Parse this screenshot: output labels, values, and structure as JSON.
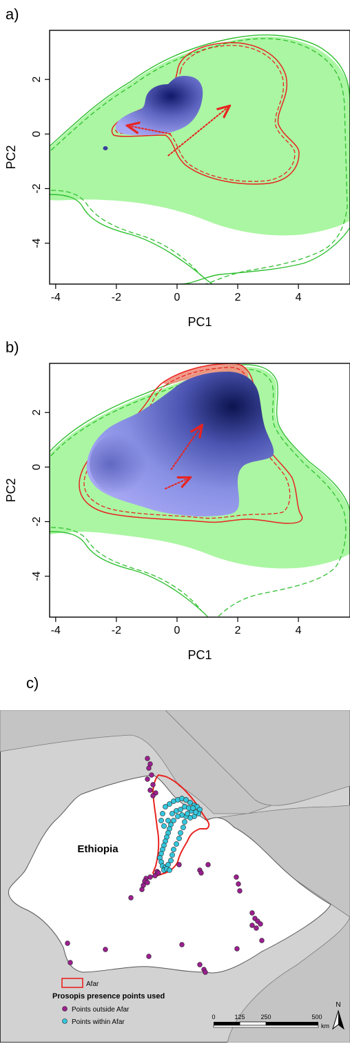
{
  "panels": {
    "a": {
      "label": "a)"
    },
    "b": {
      "label": "b)"
    },
    "c": {
      "label": "c)"
    }
  },
  "colors": {
    "green_fill": "#aaf6a2",
    "green_line": "#2fbf2f",
    "red": "#e8231f",
    "blue_dark": "#101860",
    "blue_light": "#a8a8f4",
    "ocean": "#d2d2d2",
    "land": "#ffffff",
    "magenta": "#9b1f8f",
    "cyan": "#34c6dc"
  },
  "chart_data": [
    {
      "type": "scatter",
      "title": "",
      "xlabel": "PC1",
      "ylabel": "PC2",
      "xlim": [
        -4.2,
        5.7
      ],
      "ylim": [
        -5.5,
        3.8
      ],
      "xticks": [
        "-4",
        "-2",
        "0",
        "2",
        "4"
      ],
      "yticks": [
        "2",
        "0",
        "-2",
        "-4"
      ],
      "arrows": [
        {
          "from": [
            -0.3,
            -0.8
          ],
          "to": [
            1.7,
            1.0
          ]
        },
        {
          "from": [
            -0.2,
            0.0
          ],
          "to": [
            -1.6,
            0.3
          ]
        }
      ],
      "grid": false
    },
    {
      "type": "scatter",
      "title": "",
      "xlabel": "PC1",
      "ylabel": "PC2",
      "xlim": [
        -4.2,
        5.7
      ],
      "ylim": [
        -5.5,
        3.8
      ],
      "xticks": [
        "-4",
        "-2",
        "0",
        "2",
        "4"
      ],
      "yticks": [
        "2",
        "0",
        "-2",
        "-4"
      ],
      "arrows": [
        {
          "from": [
            -0.2,
            -0.1
          ],
          "to": [
            0.8,
            1.5
          ]
        },
        {
          "from": [
            -0.4,
            -0.8
          ],
          "to": [
            0.4,
            -0.4
          ]
        }
      ],
      "grid": false
    }
  ],
  "map": {
    "country_label": "Ethiopia",
    "legend": {
      "afar": "Afar",
      "title": "Prosopis presence points used",
      "outside": "Points outside Afar",
      "within": "Points within Afar"
    },
    "scale": {
      "ticks": [
        "0",
        "125",
        "250",
        "500"
      ],
      "unit": "km"
    },
    "north": "N"
  }
}
